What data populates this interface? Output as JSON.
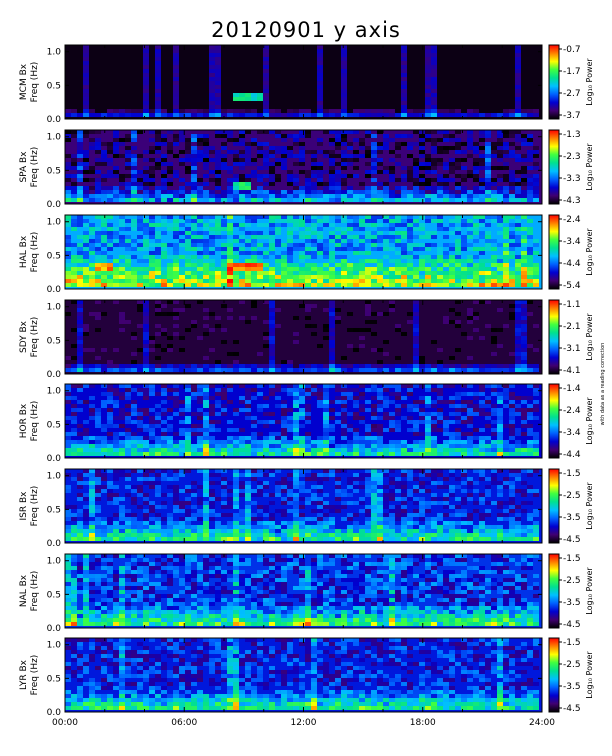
{
  "title": "20120901 y axis",
  "colorbar_label": "Log₁₀ Power",
  "side_note": "with data as a reading correction",
  "x_ticks": [
    "00:00",
    "06:00",
    "12:00",
    "18:00",
    "24:00"
  ],
  "y_ticks": [
    "0.0",
    "0.5",
    "1.0"
  ],
  "colors": {
    "background": "#ffffff",
    "colormap": [
      "#000000",
      "#400070",
      "#0000d0",
      "#0060ff",
      "#00c0ff",
      "#00e090",
      "#40ff40",
      "#ffff00",
      "#ff8000",
      "#ff0000"
    ]
  },
  "chart_data": [
    {
      "type": "heatmap",
      "station": "MCM",
      "ylabel_line1": "MCM Bx",
      "ylabel_line2": "Freq (Hz)",
      "xlim": [
        0,
        24
      ],
      "ylim": [
        0,
        1.1
      ],
      "clim": [
        -3.7,
        -0.7
      ],
      "colorbar_ticks": [
        "-0.7",
        "-1.7",
        "-2.7",
        "-3.7"
      ]
    },
    {
      "type": "heatmap",
      "station": "SPA",
      "ylabel_line1": "SPA Bx",
      "ylabel_line2": "Freq (Hz)",
      "xlim": [
        0,
        24
      ],
      "ylim": [
        0,
        1.1
      ],
      "clim": [
        -4.3,
        -1.3
      ],
      "colorbar_ticks": [
        "-1.3",
        "-2.3",
        "-3.3",
        "-4.3"
      ]
    },
    {
      "type": "heatmap",
      "station": "HAL",
      "ylabel_line1": "HAL Bx",
      "ylabel_line2": "Freq (Hz)",
      "xlim": [
        0,
        24
      ],
      "ylim": [
        0,
        1.1
      ],
      "clim": [
        -5.4,
        -2.4
      ],
      "colorbar_ticks": [
        "-2.4",
        "-3.4",
        "-4.4",
        "-5.4"
      ]
    },
    {
      "type": "heatmap",
      "station": "SDY",
      "ylabel_line1": "SDY Bx",
      "ylabel_line2": "Freq (Hz)",
      "xlim": [
        0,
        24
      ],
      "ylim": [
        0,
        1.1
      ],
      "clim": [
        -4.1,
        -1.1
      ],
      "colorbar_ticks": [
        "-1.1",
        "-2.1",
        "-3.1",
        "-4.1"
      ]
    },
    {
      "type": "heatmap",
      "station": "HOR",
      "ylabel_line1": "HOR Bx",
      "ylabel_line2": "Freq (Hz)",
      "xlim": [
        0,
        24
      ],
      "ylim": [
        0,
        1.1
      ],
      "clim": [
        -4.4,
        -1.4
      ],
      "colorbar_ticks": [
        "-1.4",
        "-2.4",
        "-3.4",
        "-4.4"
      ]
    },
    {
      "type": "heatmap",
      "station": "ISR",
      "ylabel_line1": "ISR Bx",
      "ylabel_line2": "Freq (Hz)",
      "xlim": [
        0,
        24
      ],
      "ylim": [
        0,
        1.1
      ],
      "clim": [
        -4.5,
        -1.5
      ],
      "colorbar_ticks": [
        "-1.5",
        "-2.5",
        "-3.5",
        "-4.5"
      ]
    },
    {
      "type": "heatmap",
      "station": "NAL",
      "ylabel_line1": "NAL Bx",
      "ylabel_line2": "Freq (Hz)",
      "xlim": [
        0,
        24
      ],
      "ylim": [
        0,
        1.1
      ],
      "clim": [
        -4.5,
        -1.5
      ],
      "colorbar_ticks": [
        "-1.5",
        "-2.5",
        "-3.5",
        "-4.5"
      ]
    },
    {
      "type": "heatmap",
      "station": "LYR",
      "ylabel_line1": "LYR Bx",
      "ylabel_line2": "Freq (Hz)",
      "xlim": [
        0,
        24
      ],
      "ylim": [
        0,
        1.1
      ],
      "clim": [
        -4.5,
        -1.5
      ],
      "colorbar_ticks": [
        "-1.5",
        "-2.5",
        "-3.5",
        "-4.5"
      ]
    }
  ]
}
